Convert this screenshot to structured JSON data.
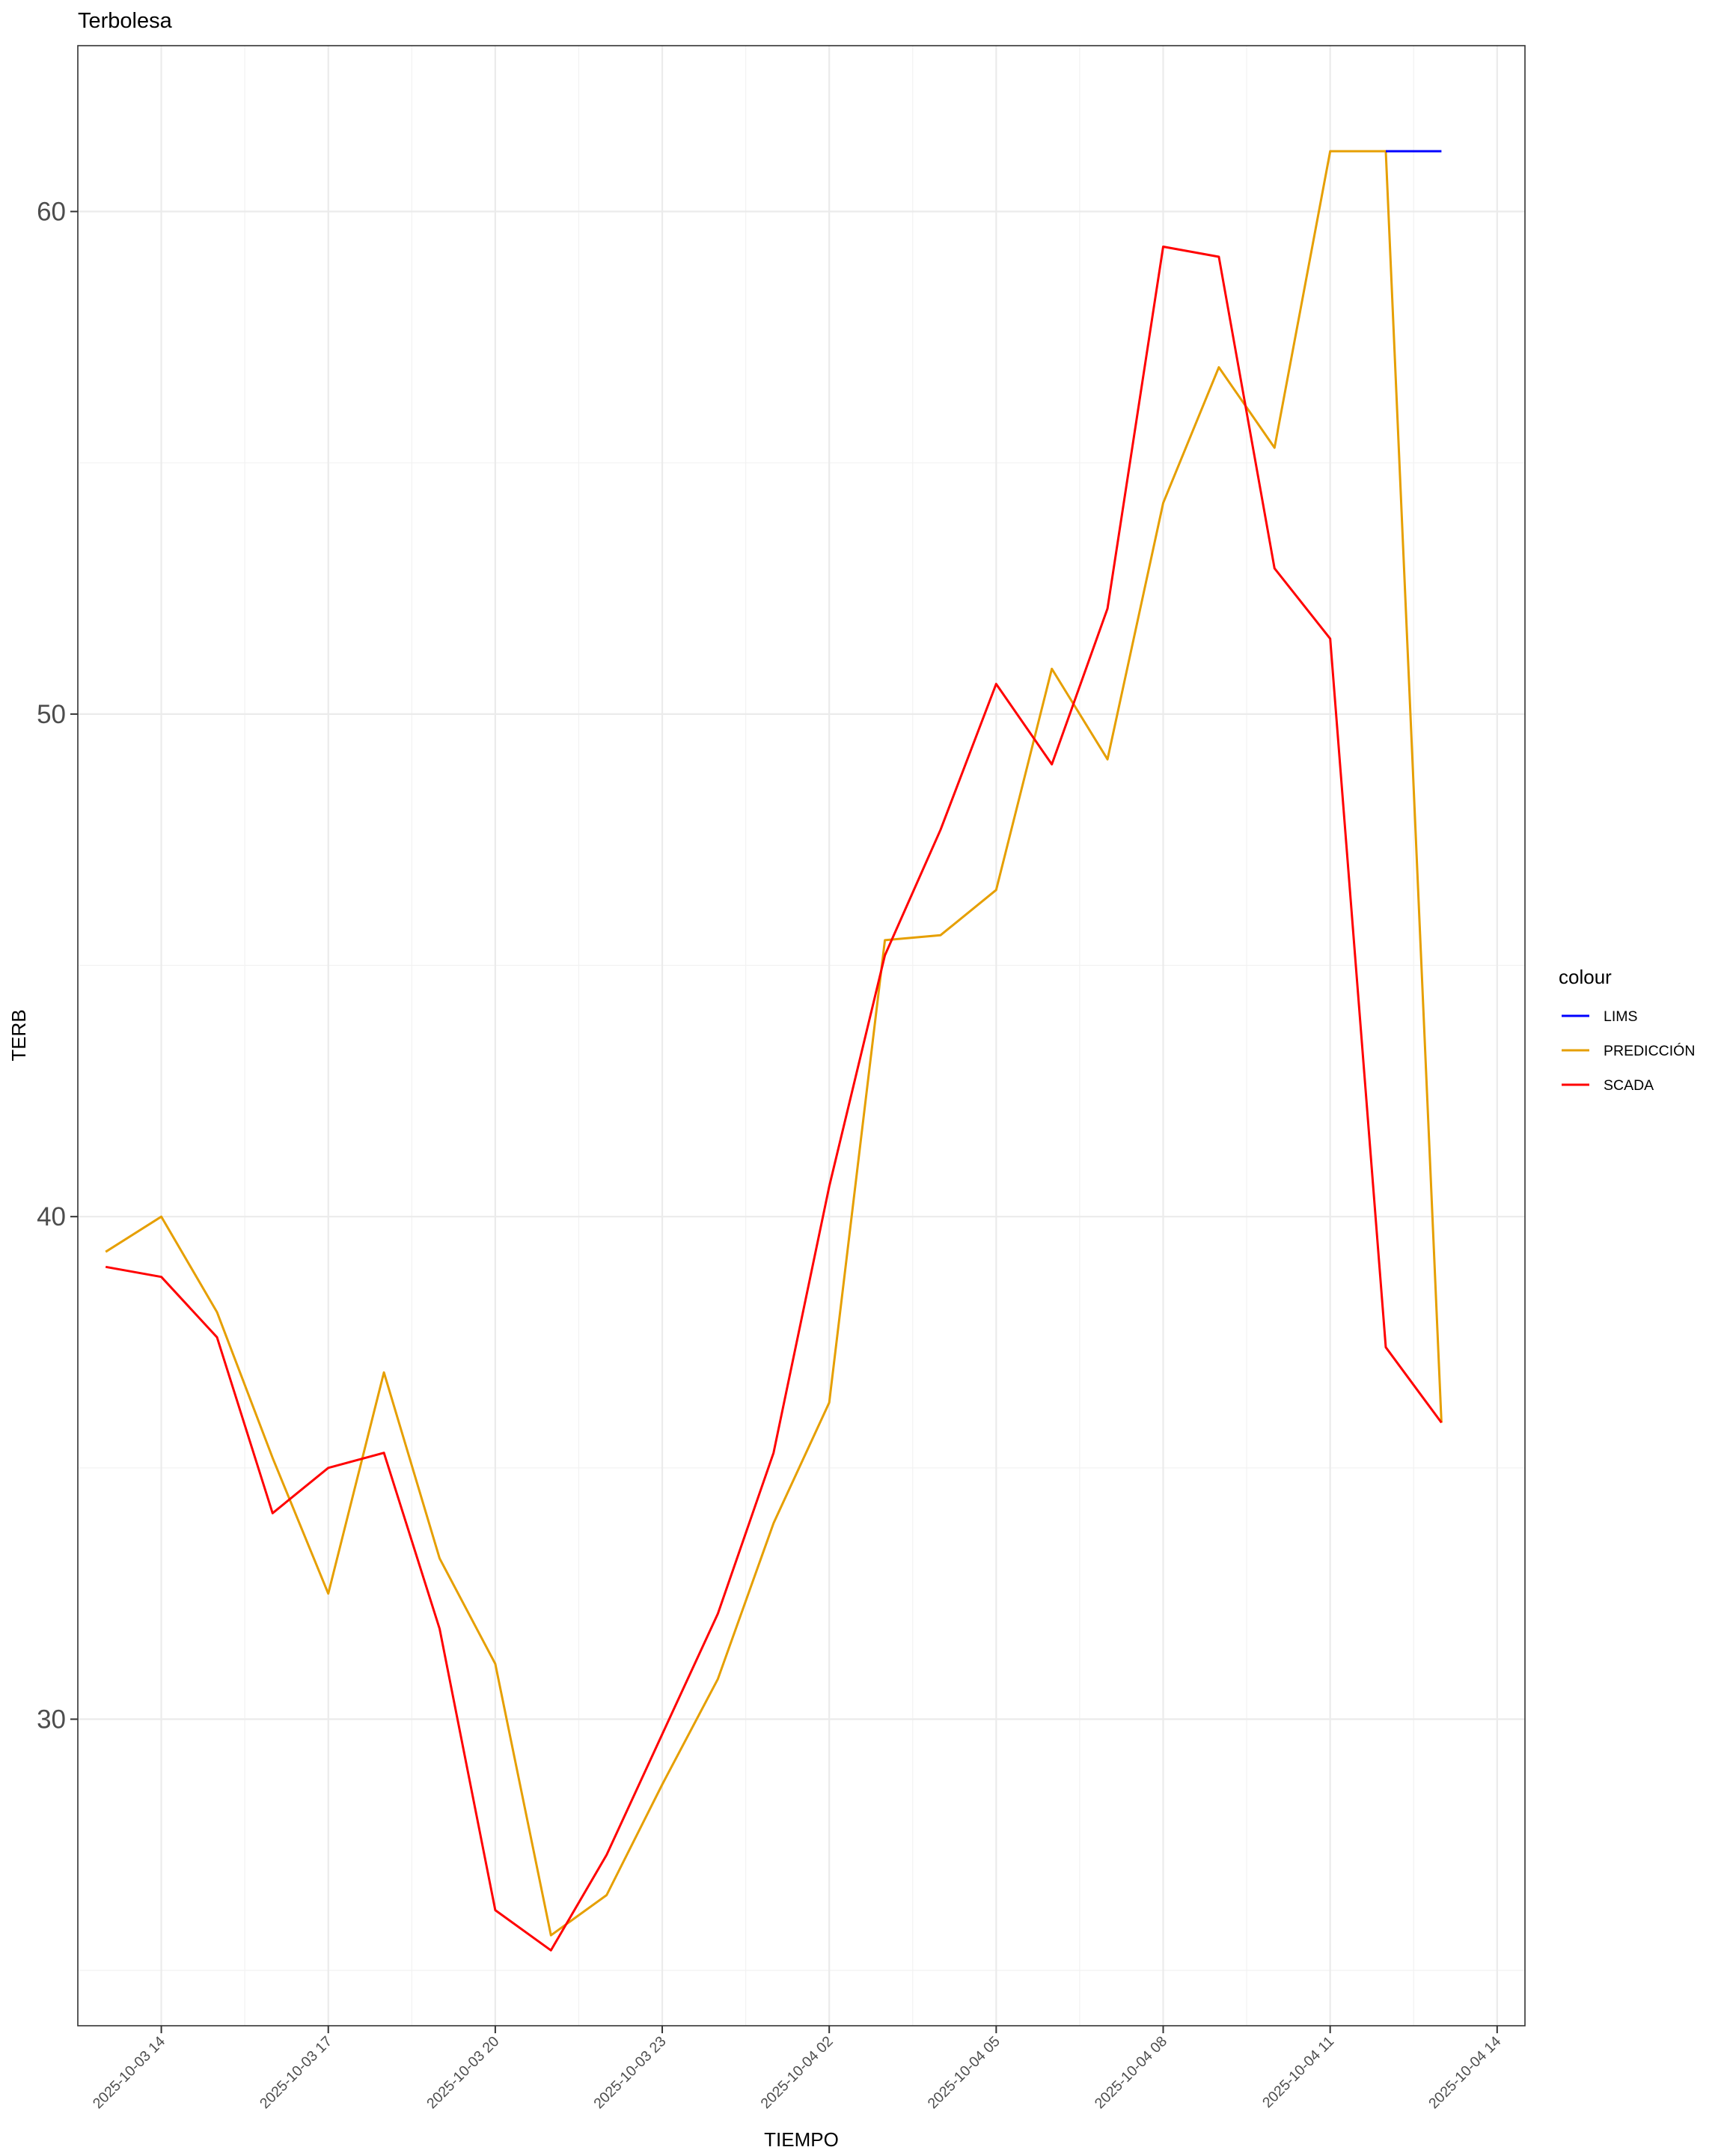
{
  "chart_data": {
    "type": "line",
    "title": "Terbolesa",
    "xlabel": "TIEMPO",
    "ylabel": "TERB",
    "ylim": [
      23.9,
      63.3
    ],
    "xlim": [
      "2025-10-03 12:30",
      "2025-10-04 14:30"
    ],
    "x_ticks": [
      "2025-10-03 14",
      "2025-10-03 17",
      "2025-10-03 20",
      "2025-10-03 23",
      "2025-10-04 02",
      "2025-10-04 05",
      "2025-10-04 08",
      "2025-10-04 11",
      "2025-10-04 14"
    ],
    "y_ticks": [
      30,
      40,
      50,
      60
    ],
    "grid": true,
    "legend": {
      "title": "colour",
      "position": "right"
    },
    "series": [
      {
        "name": "LIMS",
        "color": "#0000ff",
        "x": [
          "2025-10-04 12:00",
          "2025-10-04 13:00"
        ],
        "y": [
          61.2,
          61.2
        ]
      },
      {
        "name": "PREDICCIÓN",
        "color": "#e69f00",
        "x": [
          "2025-10-03 13:00",
          "2025-10-03 14:00",
          "2025-10-03 15:00",
          "2025-10-03 16:00",
          "2025-10-03 17:00",
          "2025-10-03 18:00",
          "2025-10-03 19:00",
          "2025-10-03 20:00",
          "2025-10-03 21:00",
          "2025-10-03 22:00",
          "2025-10-03 23:00",
          "2025-10-04 00:00",
          "2025-10-04 01:00",
          "2025-10-04 02:00",
          "2025-10-04 03:00",
          "2025-10-04 04:00",
          "2025-10-04 05:00",
          "2025-10-04 06:00",
          "2025-10-04 07:00",
          "2025-10-04 08:00",
          "2025-10-04 09:00",
          "2025-10-04 10:00",
          "2025-10-04 11:00",
          "2025-10-04 12:00",
          "2025-10-04 13:00"
        ],
        "y": [
          39.3,
          40.0,
          38.1,
          35.2,
          32.5,
          36.9,
          33.2,
          31.1,
          25.7,
          26.5,
          28.7,
          30.8,
          33.9,
          36.3,
          45.5,
          45.6,
          46.5,
          50.9,
          49.1,
          54.2,
          56.9,
          55.3,
          61.2,
          61.2,
          35.9
        ]
      },
      {
        "name": "SCADA",
        "color": "#ff0000",
        "x": [
          "2025-10-03 13:00",
          "2025-10-03 14:00",
          "2025-10-03 15:00",
          "2025-10-03 16:00",
          "2025-10-03 17:00",
          "2025-10-03 18:00",
          "2025-10-03 19:00",
          "2025-10-03 20:00",
          "2025-10-03 21:00",
          "2025-10-03 22:00",
          "2025-10-03 23:00",
          "2025-10-04 00:00",
          "2025-10-04 01:00",
          "2025-10-04 02:00",
          "2025-10-04 03:00",
          "2025-10-04 04:00",
          "2025-10-04 05:00",
          "2025-10-04 06:00",
          "2025-10-04 07:00",
          "2025-10-04 08:00",
          "2025-10-04 09:00",
          "2025-10-04 10:00",
          "2025-10-04 11:00",
          "2025-10-04 12:00",
          "2025-10-04 13:00"
        ],
        "y": [
          39.0,
          38.8,
          37.6,
          34.1,
          35.0,
          35.3,
          31.8,
          26.2,
          25.4,
          27.3,
          29.7,
          32.1,
          35.3,
          40.6,
          45.2,
          47.7,
          50.6,
          49.0,
          52.1,
          59.3,
          59.1,
          52.9,
          51.5,
          37.4,
          35.9
        ]
      }
    ]
  }
}
